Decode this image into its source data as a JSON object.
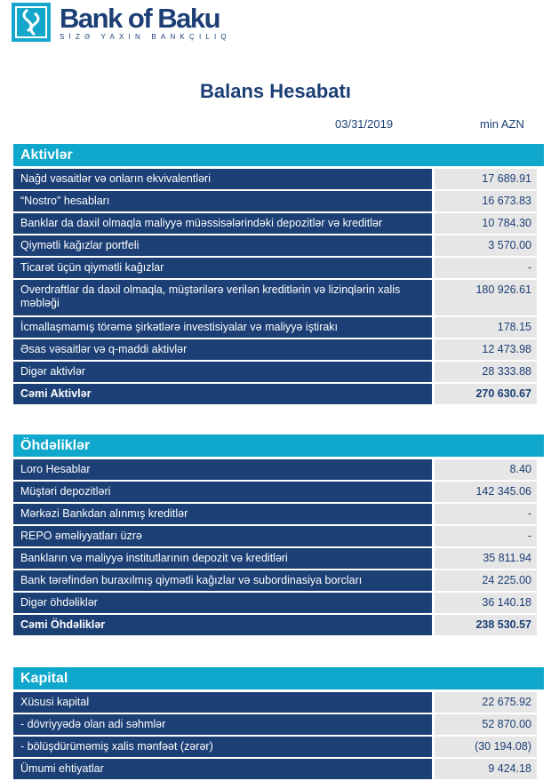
{
  "logo": {
    "name": "Bank of Baku",
    "slogan": "SİZƏ YAXIN BANKÇILIQ"
  },
  "title": "Balans Hesabatı",
  "date": "03/31/2019",
  "unit": "min AZN",
  "colors": {
    "header": "#0fa7cc",
    "row": "#1c3f75",
    "value_bg": "#e6e6e6"
  },
  "sections": [
    {
      "title": "Aktivlər",
      "rows": [
        {
          "label": "Nağd vəsaitlər və onların ekvivalentləri",
          "value": "17 689.91"
        },
        {
          "label": "“Nostro\" hesabları",
          "value": "16 673.83"
        },
        {
          "label": "Banklar da daxil olmaqla maliyyə müəssisələrindəki depozitlər və kreditlər",
          "value": "10 784.30"
        },
        {
          "label": "Qiymətli kağızlar portfeli",
          "value": "3 570.00"
        },
        {
          "label": "Ticarət üçün qiymətli kağızlar",
          "value": "-"
        },
        {
          "label": "Overdraftlar da daxil olmaqla, müştərilərə verilən kreditlərin və lizinqlərin xalis məbləği",
          "value": "180 926.61",
          "tall": true
        },
        {
          "label": "İcmallaşmamış törəmə şirkətlərə investisiyalar və maliyyə iştirakı",
          "value": "178.15"
        },
        {
          "label": "Əsas vəsaitlər və q-maddi aktivlər",
          "value": "12 473.98"
        },
        {
          "label": "Digər aktivlər",
          "value": "28 333.88"
        },
        {
          "label": "Cəmi Aktivlər",
          "value": "270 630.67",
          "total": true
        }
      ]
    },
    {
      "title": "Öhdəliklər",
      "rows": [
        {
          "label": "Loro Hesablar",
          "value": "8.40"
        },
        {
          "label": "Müştəri depozitləri",
          "value": "142 345.06"
        },
        {
          "label": "Mərkəzi Bankdan alınmış kreditlər",
          "value": "-"
        },
        {
          "label": "REPO əməliyyatları üzrə",
          "value": "-"
        },
        {
          "label": "Bankların və maliyyə institutlarının depozit və kreditləri",
          "value": "35 811.94"
        },
        {
          "label": "Bank tərəfindən buraxılmış qiymətli kağızlar və subordinasiya borcları",
          "value": "24 225.00"
        },
        {
          "label": "Digər öhdəliklər",
          "value": "36 140.18"
        },
        {
          "label": "Cəmi Öhdəliklər",
          "value": "238 530.57",
          "total": true
        }
      ]
    },
    {
      "title": "Kapital",
      "rows": [
        {
          "label": "Xüsusi kapital",
          "value": "22 675.92"
        },
        {
          "label": "- dövriyyədə olan adi səhmlər",
          "value": "52 870.00"
        },
        {
          "label": "- bölüşdürüməmiş xalis mənfəət (zərər)",
          "value": "(30 194.08)"
        },
        {
          "label": "Ümumi ehtiyatlar",
          "value": "9 424.18"
        }
      ]
    }
  ]
}
